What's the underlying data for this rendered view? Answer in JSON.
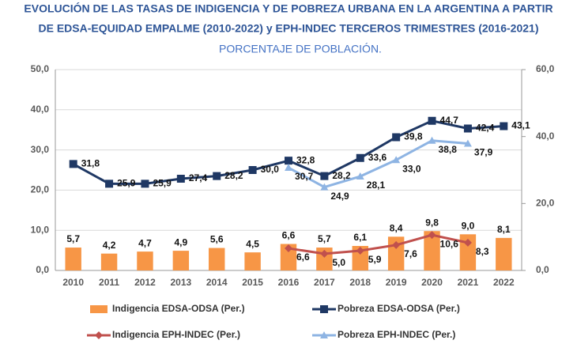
{
  "chart_data": {
    "type": "bar-line",
    "title": "EVOLUCIÓN DE LAS TASAS DE INDIGENCIA Y DE POBREZA URBANA EN LA ARGENTINA A PARTIR",
    "title2": "DE EDSA-EQUIDAD EMPALME (2010-2022) y EPH-INDEC TERCEROS TRIMESTRES (2016-2021)",
    "subtitle": "PORCENTAJE DE POBLACIÓN.",
    "categories": [
      "2010",
      "2011",
      "2012",
      "2013",
      "2014",
      "2015",
      "2016",
      "2017",
      "2018",
      "2019",
      "2020",
      "2021",
      "2022"
    ],
    "ylim": [
      0,
      50
    ],
    "yticks": [
      {
        "value": 0,
        "label": "0,0"
      },
      {
        "value": 10,
        "label": "10,0"
      },
      {
        "value": 20,
        "label": "20,0"
      },
      {
        "value": 30,
        "label": "30,0"
      },
      {
        "value": 40,
        "label": "40,0"
      },
      {
        "value": 50,
        "label": "50,0"
      }
    ],
    "y2lim": [
      0,
      60
    ],
    "y2ticks": [
      {
        "value": 0,
        "label": "0,0"
      },
      {
        "value": 20,
        "label": "20,0"
      },
      {
        "value": 40,
        "label": "40,0"
      },
      {
        "value": 60,
        "label": "60,0"
      }
    ],
    "grid": true,
    "series": [
      {
        "name": "Indigencia EDSA-ODSA (Per.)",
        "type": "bar",
        "color": "#F79646",
        "values": [
          5.7,
          4.2,
          4.7,
          4.9,
          5.6,
          4.5,
          6.6,
          5.7,
          6.1,
          8.4,
          9.8,
          9.0,
          8.1
        ],
        "value_labels": [
          "5,7",
          "4,2",
          "4,7",
          "4,9",
          "5,6",
          "4,5",
          "6,6",
          "5,7",
          "6,1",
          "8,4",
          "9,8",
          "9,0",
          "8,1"
        ]
      },
      {
        "name": "Pobreza EDSA-ODSA (Per.)",
        "type": "line",
        "marker": "square",
        "axis": "y2",
        "color": "#1F3864",
        "values": [
          31.8,
          25.9,
          25.9,
          27.4,
          28.2,
          30.0,
          32.8,
          28.2,
          33.6,
          39.8,
          44.7,
          42.4,
          43.1
        ],
        "value_labels": [
          "31,8",
          "25,9",
          "25,9",
          "27,4",
          "28,2",
          "30,0",
          "32,8",
          "28,2",
          "33,6",
          "39,8",
          "44,7",
          "42,4",
          "43,1"
        ]
      },
      {
        "name": "Indigencia EPH-INDEC (Per.)",
        "type": "line",
        "marker": "diamond",
        "axis": "y2",
        "color": "#C0504D",
        "values": [
          null,
          null,
          null,
          null,
          null,
          null,
          6.6,
          5.0,
          5.9,
          7.6,
          10.6,
          8.3,
          null
        ],
        "value_labels": [
          null,
          null,
          null,
          null,
          null,
          null,
          "6,6",
          "5,0",
          "5,9",
          "7,6",
          "10,6",
          "8,3",
          null
        ]
      },
      {
        "name": "Pobreza EPH-INDEC (Per.)",
        "type": "line",
        "marker": "triangle",
        "axis": "y2",
        "color": "#8EB4E3",
        "values": [
          null,
          null,
          null,
          null,
          null,
          null,
          30.7,
          24.9,
          28.1,
          33.0,
          38.8,
          37.9,
          null
        ],
        "value_labels": [
          null,
          null,
          null,
          null,
          null,
          null,
          "30,7",
          "24,9",
          "28,1",
          "33,0",
          "38,8",
          "37,9",
          null
        ]
      }
    ]
  }
}
